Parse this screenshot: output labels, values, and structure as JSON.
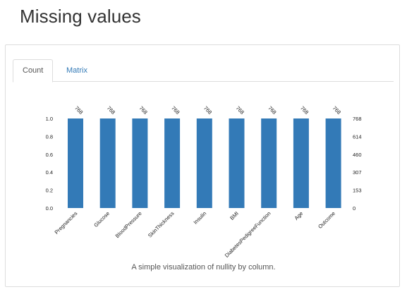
{
  "page_title": "Missing values",
  "tabs": [
    {
      "label": "Count",
      "active": true
    },
    {
      "label": "Matrix",
      "active": false
    }
  ],
  "caption": "A simple visualization of nullity by column.",
  "colors": {
    "bar": "#337ab7",
    "tab_link": "#337ab7"
  },
  "chart_data": {
    "type": "bar",
    "categories": [
      "Pregnancies",
      "Glucose",
      "BloodPressure",
      "SkinThickness",
      "Insulin",
      "BMI",
      "DiabetesPedigreeFunction",
      "Age",
      "Outcome"
    ],
    "values": [
      1.0,
      1.0,
      1.0,
      1.0,
      1.0,
      1.0,
      1.0,
      1.0,
      1.0
    ],
    "data_labels": [
      "768",
      "768",
      "768",
      "768",
      "768",
      "768",
      "768",
      "768",
      "768"
    ],
    "ylim": [
      0,
      1.0
    ],
    "yticks_left": [
      "0.0",
      "0.2",
      "0.4",
      "0.6",
      "0.8",
      "1.0"
    ],
    "yticks_right": [
      "0",
      "153",
      "307",
      "460",
      "614",
      "768"
    ],
    "grid": false,
    "title": "",
    "xlabel": "",
    "ylabel": ""
  }
}
